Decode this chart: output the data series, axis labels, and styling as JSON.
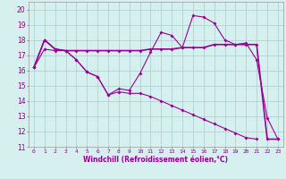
{
  "xlabel": "Windchill (Refroidissement éolien,°C)",
  "x_values": [
    0,
    1,
    2,
    3,
    4,
    5,
    6,
    7,
    8,
    9,
    10,
    11,
    12,
    13,
    14,
    15,
    16,
    17,
    18,
    19,
    20,
    21,
    22,
    23
  ],
  "line1": [
    16.2,
    18.0,
    17.4,
    17.3,
    16.7,
    15.9,
    15.6,
    14.4,
    14.8,
    14.7,
    15.8,
    17.2,
    18.5,
    18.3,
    17.5,
    19.6,
    19.5,
    19.1,
    18.0,
    17.7,
    17.8,
    16.7,
    12.9,
    11.5
  ],
  "line2": [
    16.2,
    18.0,
    17.4,
    17.3,
    17.3,
    17.3,
    17.3,
    17.3,
    17.3,
    17.3,
    17.3,
    17.4,
    17.4,
    17.4,
    17.5,
    17.5,
    17.5,
    17.7,
    17.7,
    17.7,
    17.7,
    17.7,
    11.5,
    11.5
  ],
  "line3": [
    16.2,
    17.4,
    17.3,
    17.3,
    16.7,
    15.9,
    15.6,
    14.4,
    14.6,
    14.5,
    14.5,
    14.3,
    14.0,
    13.7,
    13.4,
    13.1,
    12.8,
    12.5,
    12.2,
    11.9,
    11.6,
    11.5,
    null,
    null
  ],
  "color": "#990099",
  "bg_color": "#d6f0f0",
  "grid_color": "#aacccc",
  "ylim": [
    11,
    20.5
  ],
  "yticks": [
    11,
    12,
    13,
    14,
    15,
    16,
    17,
    18,
    19,
    20
  ],
  "xlim": [
    -0.5,
    23.5
  ]
}
